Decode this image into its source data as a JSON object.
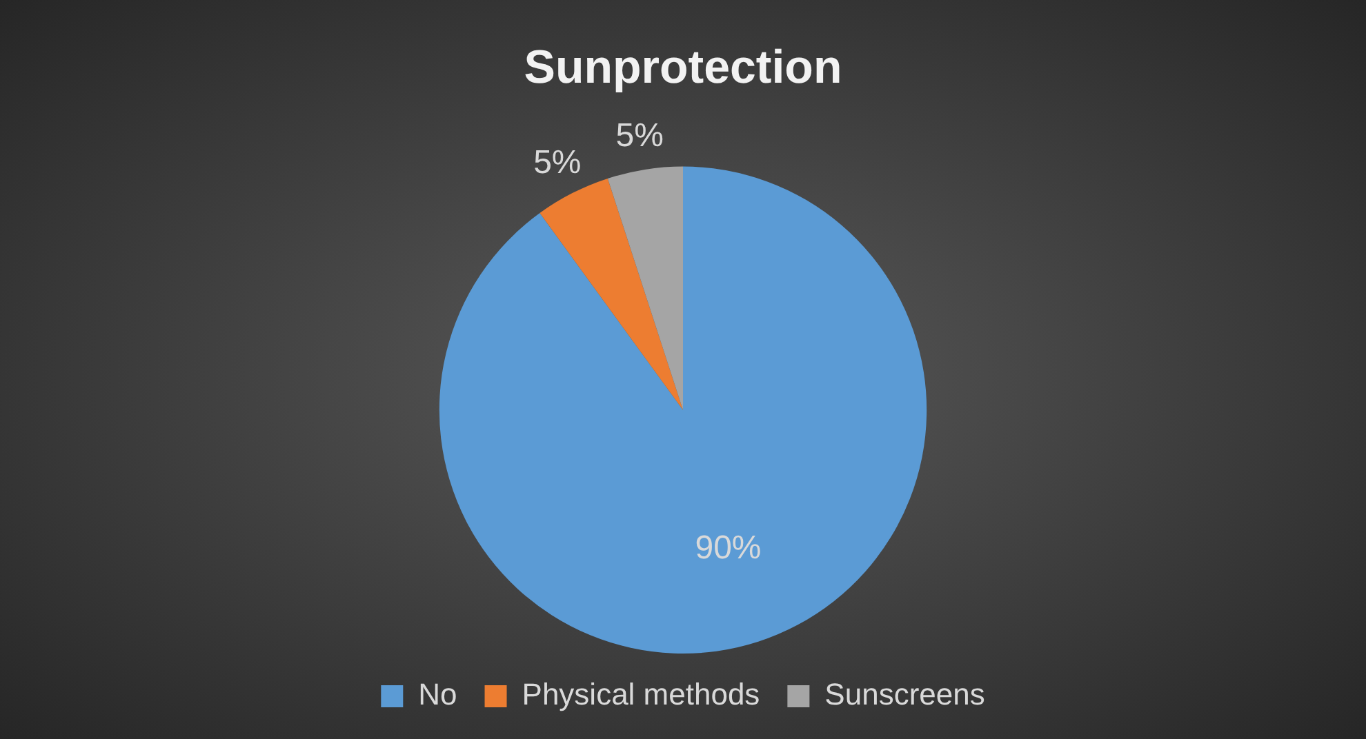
{
  "chart_data": {
    "type": "pie",
    "title": "Sunprotection",
    "categories": [
      "No",
      "Physical methods",
      "Sunscreens"
    ],
    "values": [
      90,
      5,
      5
    ],
    "value_labels": [
      "90%",
      "5%",
      "5%"
    ],
    "colors": [
      "#5b9bd5",
      "#ed7d31",
      "#a5a5a5"
    ],
    "legend": "bottom"
  }
}
